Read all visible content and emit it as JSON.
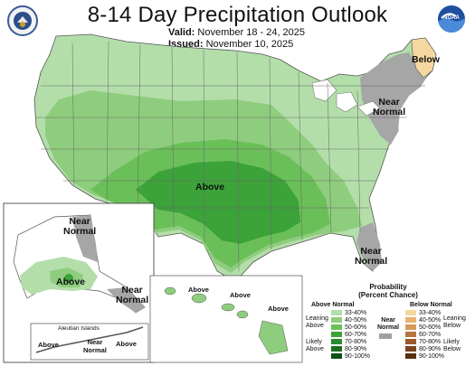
{
  "header": {
    "title": "8-14 Day Precipitation Outlook",
    "valid_label": "Valid:",
    "valid_value": "November 18 - 24, 2025",
    "issued_label": "Issued:",
    "issued_value": "November 10, 2025"
  },
  "logos": {
    "left": "noaa-seal-icon",
    "right": "noaa-logo-icon",
    "right_text": "NOAA"
  },
  "map_labels": {
    "above_conus": "Above",
    "below_ne": "Below",
    "near_normal_ne": "Near\nNormal",
    "near_normal_se": "Near\nNormal",
    "ak_near_normal_n": "Near\nNormal",
    "ak_above": "Above",
    "ak_near_normal_se": "Near\nNormal",
    "hi_above_1": "Above",
    "hi_above_2": "Above",
    "hi_above_3": "Above",
    "aleutian_title": "Aleutian Islands",
    "aleutian_above": "Above",
    "aleutian_near_normal": "Near\nNormal",
    "aleutian_above_2": "Above"
  },
  "legend": {
    "title": "Probability\n(Percent Chance)",
    "above_header": "Above Normal",
    "below_header": "Below Normal",
    "near_header": "Near\nNormal",
    "leaning_above": "Leaning\nAbove",
    "likely_above": "Likely\nAbove",
    "leaning_below": "Leaning\nBelow",
    "likely_below": "Likely\nBelow",
    "above_ranges": [
      "33-40%",
      "40-50%",
      "50-60%",
      "60-70%",
      "70-80%",
      "80-90%",
      "90-100%"
    ],
    "below_ranges": [
      "33-40%",
      "40-50%",
      "50-60%",
      "60-70%",
      "70-80%",
      "80-90%",
      "90-100%"
    ],
    "above_colors": [
      "#b3deaa",
      "#8fcd7e",
      "#6bbf59",
      "#3ca23a",
      "#2a8a2f",
      "#1a6e22",
      "#0c5016"
    ],
    "below_colors": [
      "#f5d7a0",
      "#e8b270",
      "#d69a58",
      "#b9763e",
      "#9a5a2c",
      "#7a4420",
      "#5a3010"
    ],
    "near_color": "#a0a0a0"
  },
  "colors": {
    "above_33_40": "#b3deaa",
    "above_40_50": "#8fcd7e",
    "above_50_60": "#6bbf59",
    "above_60_70": "#3ca23a",
    "below_33_40": "#f5d7a0",
    "near_normal": "#a6a6a6"
  }
}
